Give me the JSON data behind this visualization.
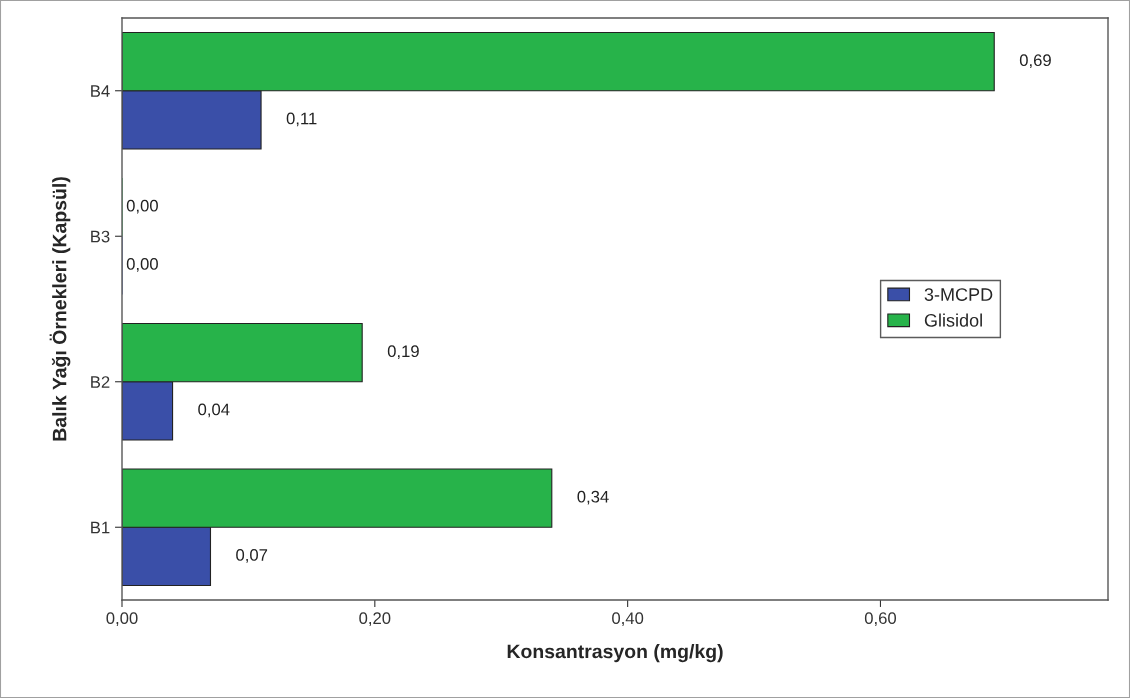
{
  "chart_data": {
    "type": "bar",
    "orientation": "horizontal",
    "xlabel": "Konsantrasyon (mg/kg)",
    "ylabel": "Balık Yağı Örnekleri (Kapsül)",
    "categories": [
      "B4",
      "B3",
      "B2",
      "B1"
    ],
    "series": [
      {
        "name": "3-MCPD",
        "color": "#3a4fa8",
        "values": [
          0.11,
          0.0,
          0.04,
          0.07
        ],
        "value_labels": [
          "0,11",
          "0,00",
          "0,04",
          "0,07"
        ]
      },
      {
        "name": "Glisidol",
        "color": "#27b34a",
        "values": [
          0.69,
          0.0,
          0.19,
          0.34
        ],
        "value_labels": [
          "0,69",
          "0,00",
          "0,19",
          "0,34"
        ]
      }
    ],
    "xlim": [
      0,
      0.78
    ],
    "xticks": [
      {
        "value": 0,
        "label": "0,00"
      },
      {
        "value": 0.2,
        "label": "0,20"
      },
      {
        "value": 0.4,
        "label": "0,40"
      },
      {
        "value": 0.6,
        "label": "0,60"
      }
    ],
    "grid": false,
    "legend": "right"
  }
}
